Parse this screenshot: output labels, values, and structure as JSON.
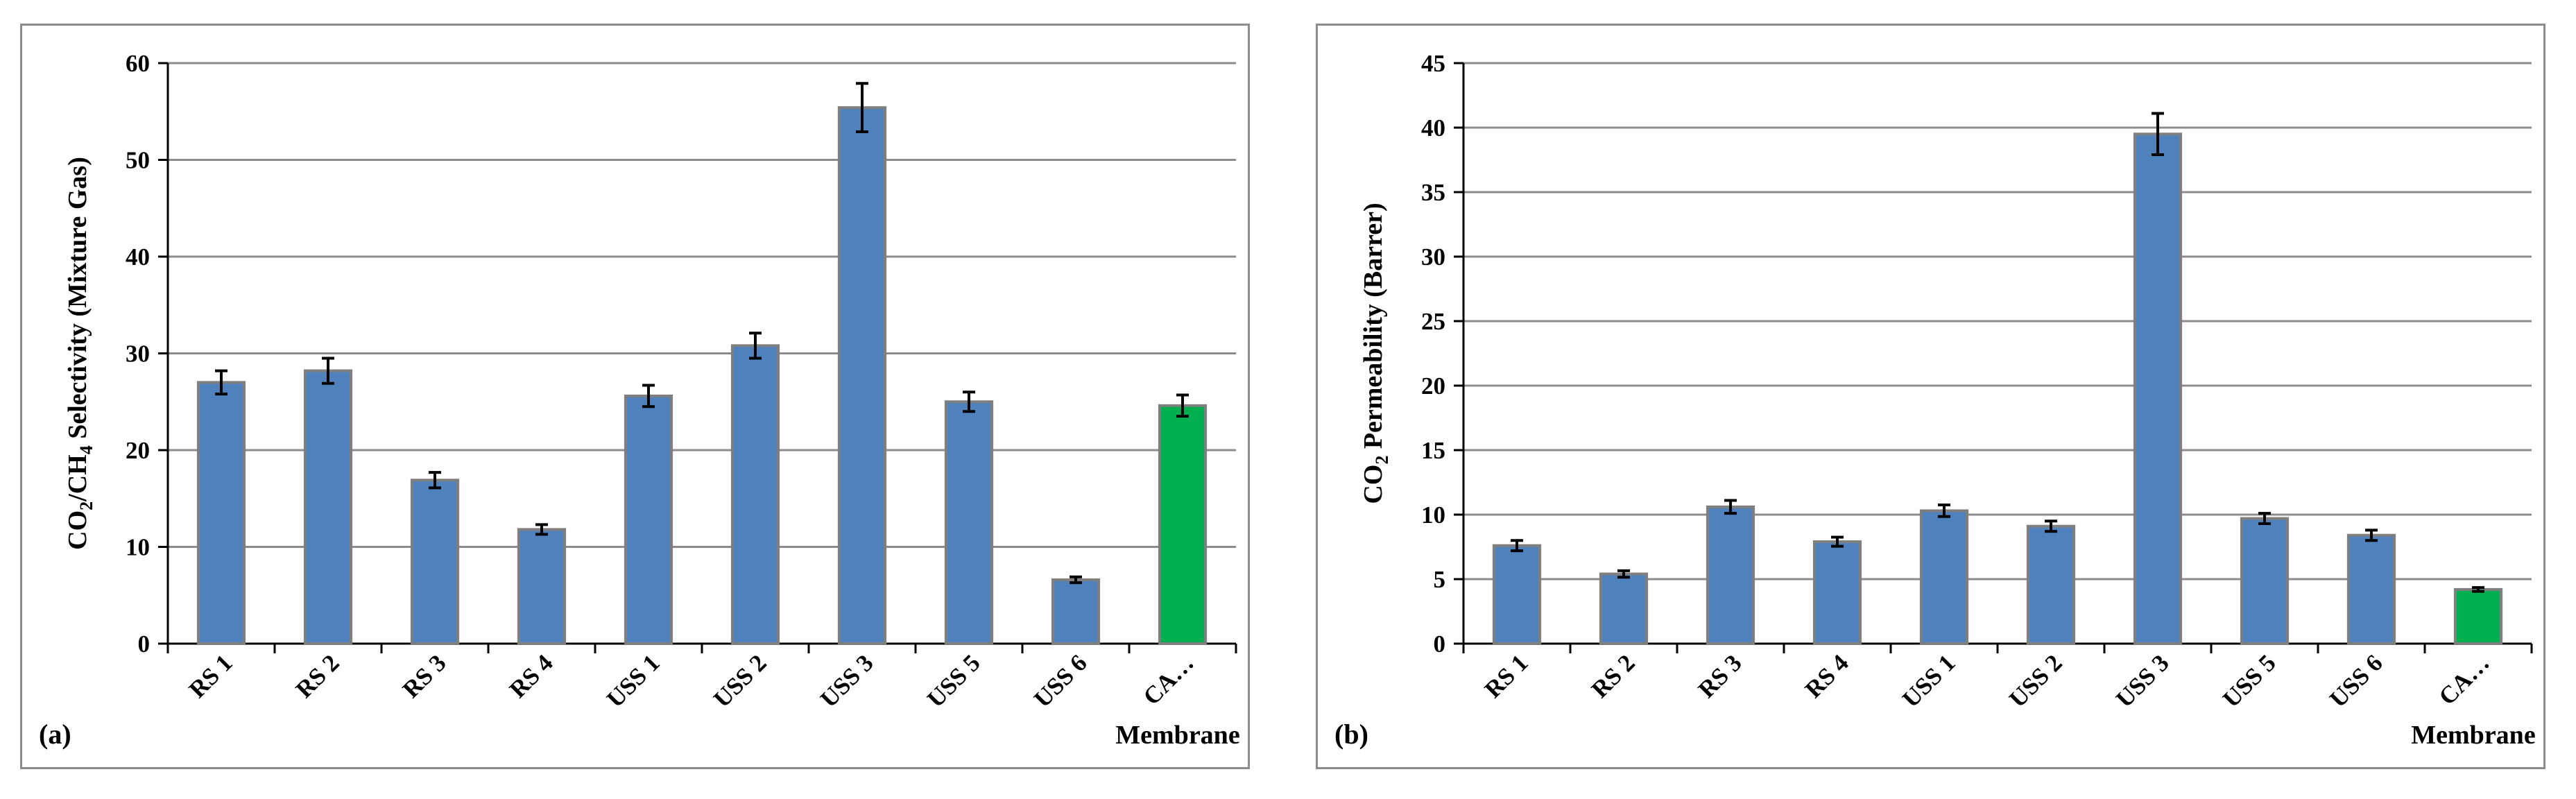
{
  "colors": {
    "bar": "#4F81BD",
    "highlight": "#00B050",
    "bar_stroke": "#7F7F7F",
    "grid": "#8c8c8c",
    "axis": "#000000"
  },
  "chart_data": [
    {
      "type": "bar",
      "panel_label": "(a)",
      "title": "",
      "xlabel": "Membrane",
      "ylabel_parts": [
        "CO",
        "2",
        "/CH",
        "4",
        " Selectivity (Mixture Gas)"
      ],
      "categories": [
        "RS 1",
        "RS 2",
        "RS 3",
        "RS 4",
        "USS 1",
        "USS 2",
        "USS 3",
        "USS 5",
        "USS 6",
        "CA…"
      ],
      "values": [
        27,
        28.2,
        16.9,
        11.8,
        25.6,
        30.8,
        55.4,
        25,
        6.6,
        24.6
      ],
      "errors": [
        1.2,
        1.3,
        0.8,
        0.5,
        1.1,
        1.3,
        2.5,
        1.0,
        0.3,
        1.1
      ],
      "highlight_index": 9,
      "ylim": [
        0,
        60
      ],
      "yticks": [
        0,
        10,
        20,
        30,
        40,
        50,
        60
      ],
      "grid": true
    },
    {
      "type": "bar",
      "panel_label": "(b)",
      "title": "",
      "xlabel": "Membrane",
      "ylabel_parts": [
        "CO",
        "2",
        " Permeability  (Barrer)"
      ],
      "categories": [
        "RS 1",
        "RS 2",
        "RS 3",
        "RS 4",
        "USS 1",
        "USS 2",
        "USS 3",
        "USS 5",
        "USS 6",
        "CA…"
      ],
      "values": [
        7.6,
        5.4,
        10.6,
        7.9,
        10.3,
        9.1,
        39.5,
        9.7,
        8.4,
        4.2
      ],
      "errors": [
        0.4,
        0.25,
        0.5,
        0.35,
        0.45,
        0.4,
        1.6,
        0.4,
        0.4,
        0.15
      ],
      "highlight_index": 9,
      "ylim": [
        0,
        45
      ],
      "yticks": [
        0,
        5,
        10,
        15,
        20,
        25,
        30,
        35,
        40,
        45
      ],
      "grid": true
    }
  ]
}
